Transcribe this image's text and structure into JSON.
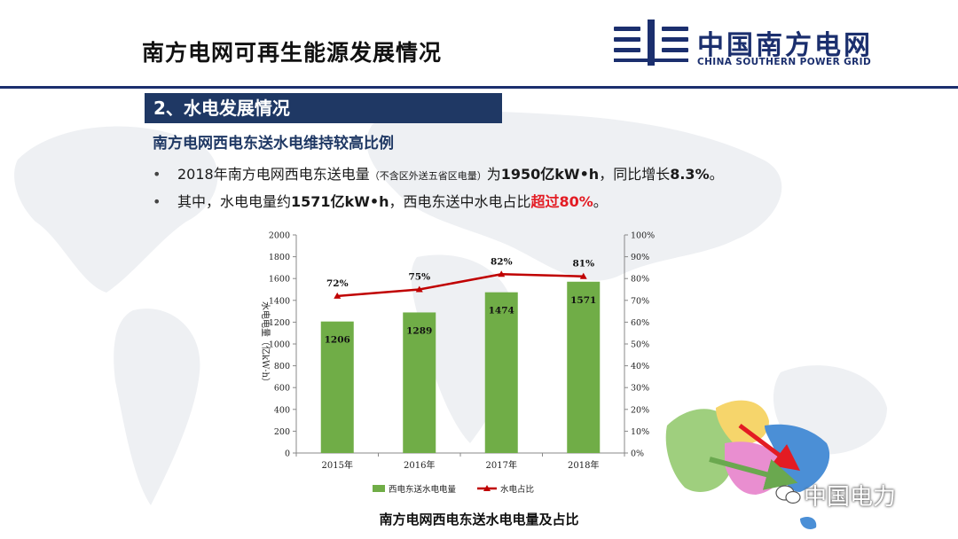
{
  "header": {
    "title": "南方电网可再生能源发展情况",
    "logo_cn": "中国南方电网",
    "logo_en": "CHINA SOUTHERN POWER GRID"
  },
  "section": {
    "label": "2、水电发展情况",
    "subheading": "南方电网西电东送水电维持较高比例"
  },
  "bullets": [
    {
      "dot": "•",
      "pre": "2018年南方电网西电东送电量",
      "note": "（不含区外送五省区电量）",
      "mid": "为",
      "bold1": "1950亿kW•h",
      "mid2": "，同比增长",
      "bold2": "8.3%",
      "end": "。"
    },
    {
      "dot": "•",
      "pre": "其中，水电电量约",
      "bold1": "1571亿kW•h",
      "mid": "，西电东送中水电占比",
      "red": "超过80%",
      "end": "。"
    }
  ],
  "chart_caption": "南方电网西电东送水电电量及占比",
  "watermark": "中国电力",
  "colors": {
    "navy": "#1f3864",
    "bar": "#70ad47",
    "line": "#c00000",
    "highlight": "#e31b23"
  },
  "chart_data": {
    "type": "bar",
    "categories": [
      "2015年",
      "2016年",
      "2017年",
      "2018年"
    ],
    "series": [
      {
        "name": "西电东送水电电量",
        "type": "bar",
        "axis": "left",
        "values": [
          1206,
          1289,
          1474,
          1571
        ],
        "labels": [
          "1206",
          "1289",
          "1474",
          "1571"
        ]
      },
      {
        "name": "水电占比",
        "type": "line",
        "axis": "right",
        "values": [
          72,
          75,
          82,
          81
        ],
        "labels": [
          "72%",
          "75%",
          "82%",
          "81%"
        ]
      }
    ],
    "ylabel": "水电电量（亿kW·h）",
    "ylim": [
      0,
      2000
    ],
    "yticks": [
      "0",
      "200",
      "400",
      "600",
      "800",
      "1000",
      "1200",
      "1400",
      "1600",
      "1800",
      "2000"
    ],
    "y2lim": [
      0,
      100
    ],
    "y2ticks": [
      "0%",
      "10%",
      "20%",
      "30%",
      "40%",
      "50%",
      "60%",
      "70%",
      "80%",
      "90%",
      "100%"
    ],
    "legend_position": "bottom",
    "grid": false
  }
}
